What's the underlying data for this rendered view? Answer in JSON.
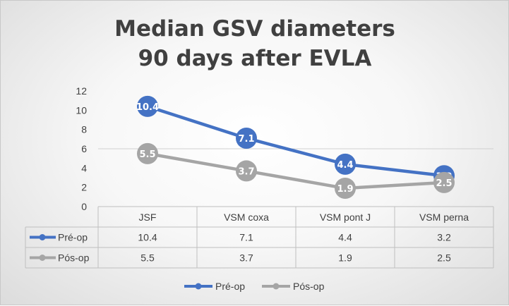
{
  "chart_data": {
    "type": "line",
    "title": "Median GSV diameters",
    "subtitle": "90 days after EVLA",
    "categories": [
      "JSF",
      "VSM coxa",
      "VSM pont J",
      "VSM perna"
    ],
    "ylim": [
      0,
      12
    ],
    "yticks": [
      0,
      2,
      4,
      6,
      8,
      10,
      12
    ],
    "series": [
      {
        "name": "Pré-op",
        "values": [
          10.4,
          7.1,
          4.4,
          3.2
        ],
        "labels": [
          "10.4",
          "7.1",
          "4.4",
          "3.2"
        ],
        "color": "#4472C4"
      },
      {
        "name": "Pós-op",
        "values": [
          5.5,
          3.7,
          1.9,
          2.5
        ],
        "labels": [
          "5.5",
          "3.7",
          "1.9",
          "2.5"
        ],
        "color": "#A5A5A5"
      }
    ],
    "data_table": true,
    "legend": "bottom"
  }
}
